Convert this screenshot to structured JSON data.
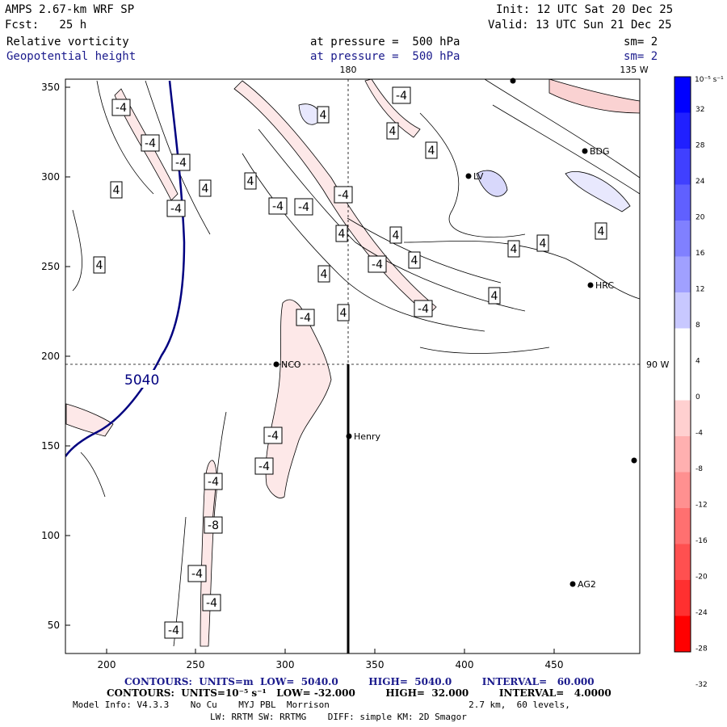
{
  "header": {
    "model": "AMPS 2.67-km WRF SP",
    "forecast": "Fcst:   25 h",
    "init": "Init: 12 UTC Sat 20 Dec 25",
    "valid": "Valid: 13 UTC Sun 21 Dec 25",
    "field1_name": "Relative vorticity",
    "field1_level": "at pressure =  500 hPa",
    "field1_smooth": "sm= 2",
    "field2_name": "Geopotential height",
    "field2_level": "at pressure =  500 hPa",
    "field2_smooth": "sm= 2"
  },
  "map": {
    "meridian_labels": [
      "180",
      "135 W",
      "90 W"
    ],
    "x_ticks": [
      "200",
      "250",
      "300",
      "350",
      "400",
      "450"
    ],
    "y_ticks": [
      "350",
      "300",
      "250",
      "200",
      "150",
      "100",
      "50"
    ],
    "stations": [
      "NCO",
      "Henry",
      "HRC",
      "AG2",
      "BDG",
      "LV"
    ],
    "height_contour_label": "5040",
    "vorticity_labels": [
      "-4",
      "-4",
      "4",
      "-4",
      "4",
      "4",
      "-4",
      "4",
      "-4",
      "4",
      "-4",
      "4",
      "-4",
      "-4",
      "4",
      "4",
      "4",
      "-4",
      "4",
      "-4",
      "4",
      "-4",
      "-4",
      "-4",
      "-4",
      "-8",
      "-4",
      "-4",
      "-4",
      "4",
      "4",
      "4",
      "4",
      "4"
    ]
  },
  "colorbar": {
    "units_label": "10⁻⁵ s⁻¹",
    "tick_labels": [
      "32",
      "28",
      "24",
      "20",
      "16",
      "12",
      "8",
      "4",
      "0",
      "-4",
      "-8",
      "-12",
      "-16",
      "-20",
      "-24",
      "-28",
      "-32"
    ]
  },
  "footer": {
    "height_contours": "CONTOURS:  UNITS=m  LOW=  5040.0         HIGH=  5040.0         INTERVAL=   60.000",
    "vort_contours": "CONTOURS:  UNITS=10⁻⁵ s⁻¹   LOW= -32.000         HIGH=  32.000         INTERVAL=   4.0000",
    "model_info": "Model Info: V4.3.3    No Cu    MYJ PBL  Morrison                          2.7 km,  60 levels,",
    "physics": "LW: RRTM SW: RRTMG    DIFF: simple KM: 2D Smagor"
  },
  "colors": {
    "positive_max": "#0000ff",
    "negative_max": "#ff0000",
    "height_contour": "#000080",
    "neg_fill": "#fde8e8",
    "pos_fill": "#e8e8fd"
  }
}
